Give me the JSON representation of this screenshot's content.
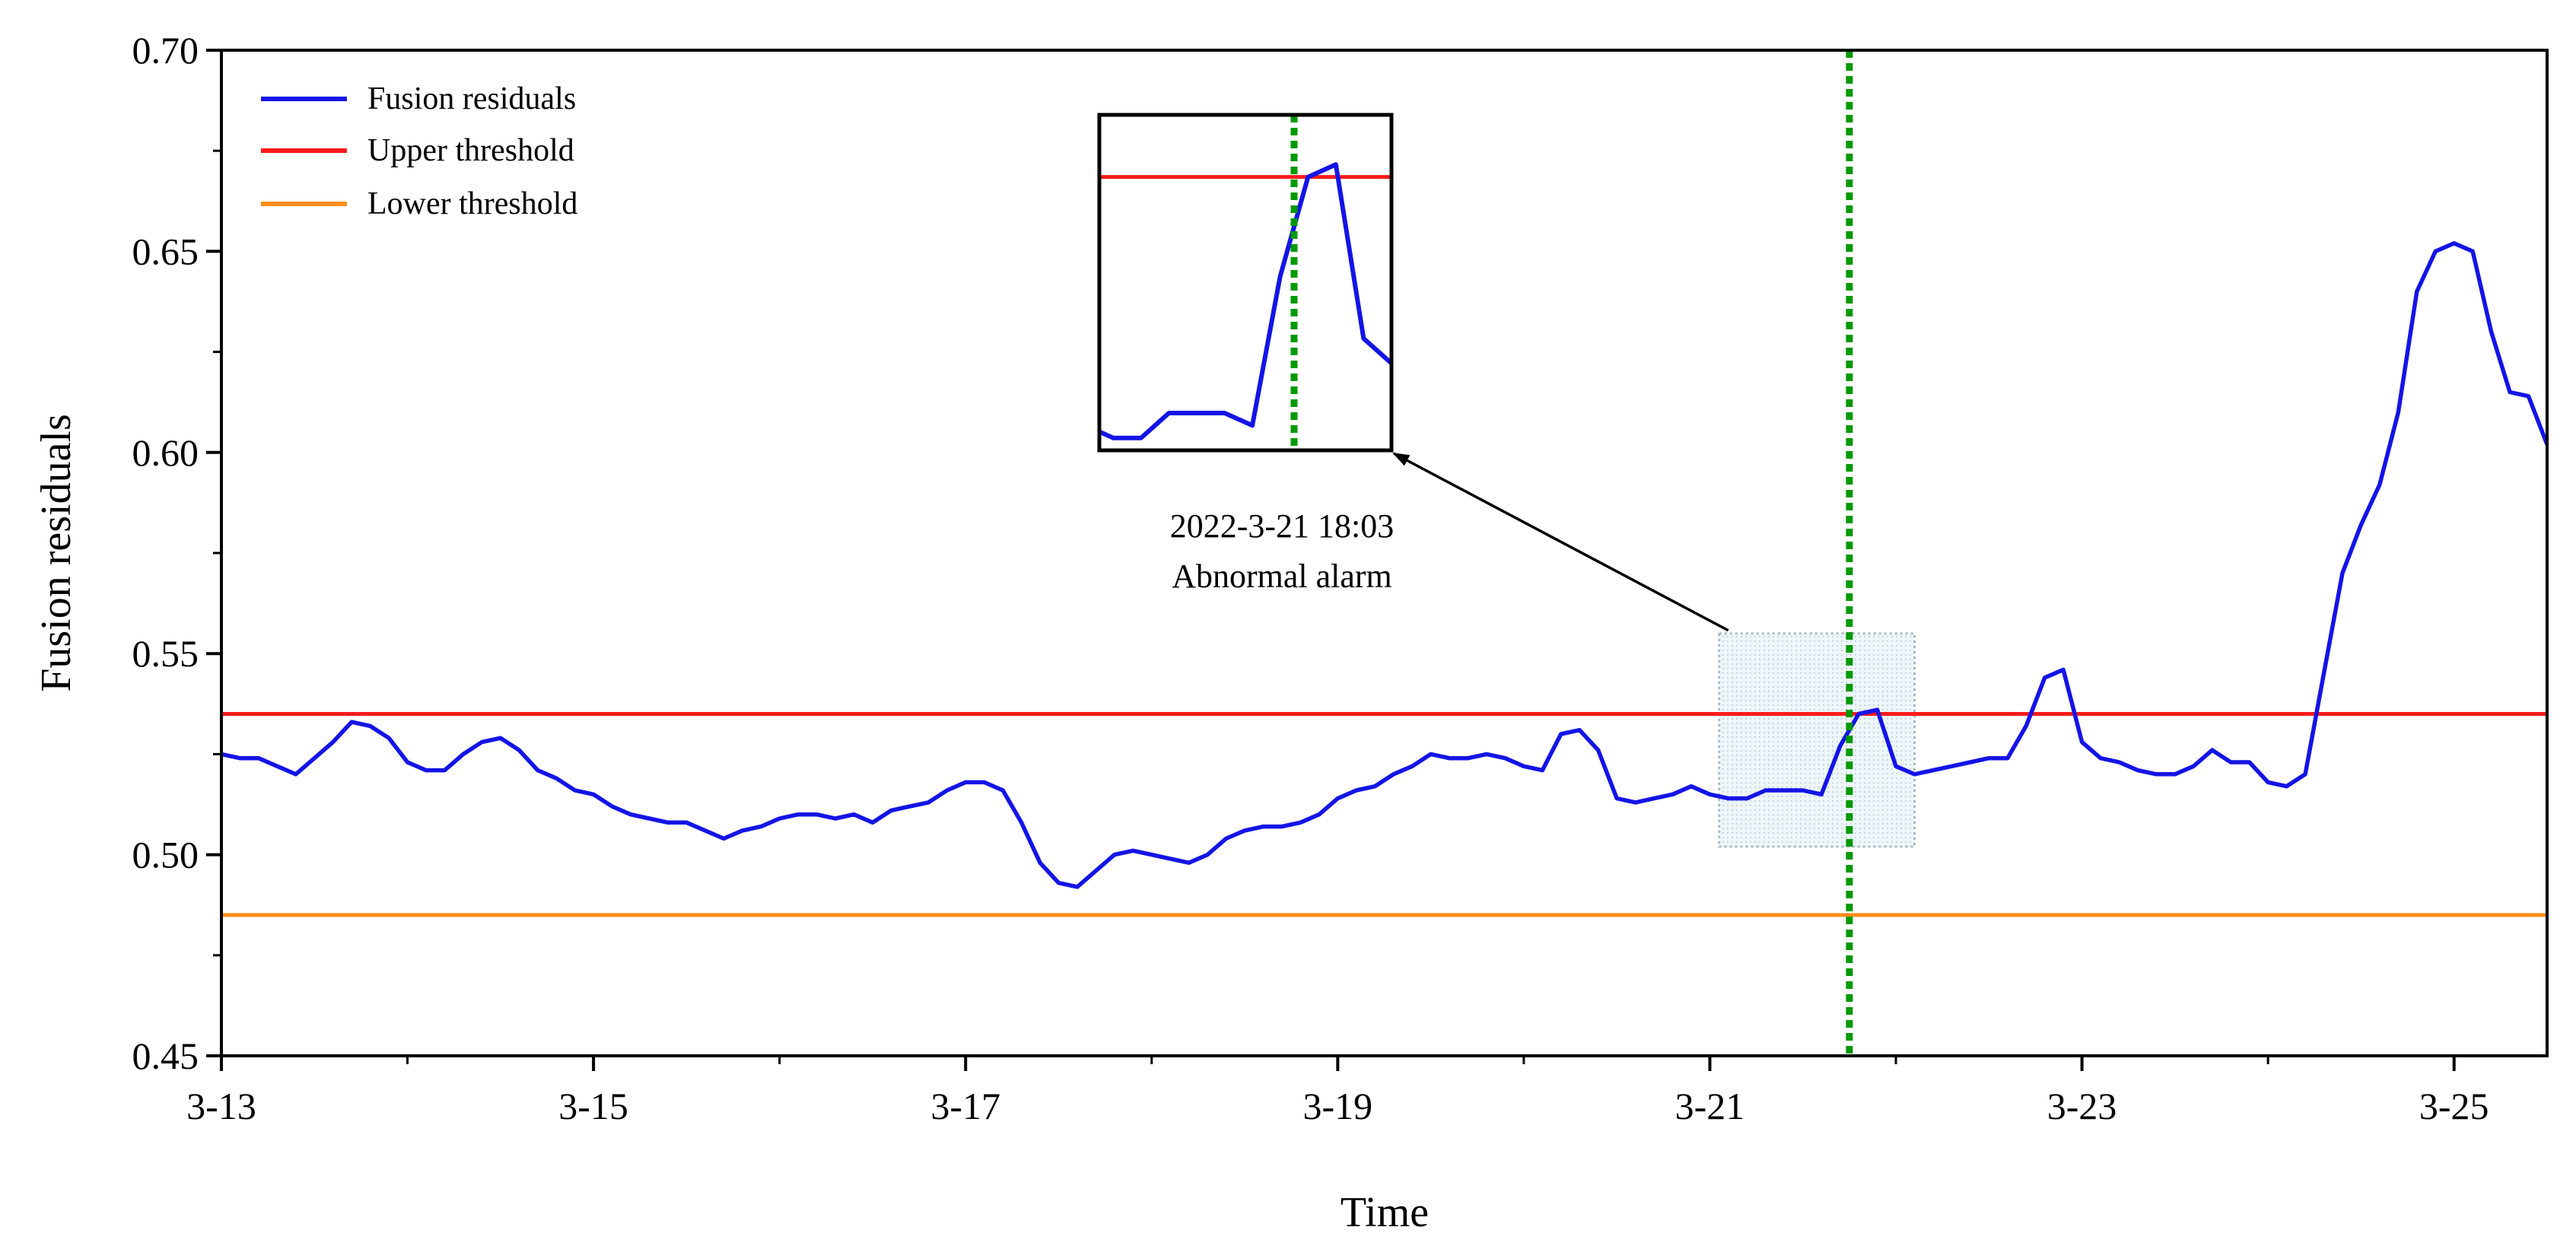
{
  "chart_data": {
    "type": "line",
    "title": "",
    "xlabel": "Time",
    "ylabel": "Fusion  residuals",
    "xlim": [
      0,
      12.5
    ],
    "ylim": [
      0.45,
      0.7
    ],
    "x_unit": "days since 3-13",
    "x_ticks": [
      {
        "x": 0,
        "label": "3-13"
      },
      {
        "x": 2,
        "label": "3-15"
      },
      {
        "x": 4,
        "label": "3-17"
      },
      {
        "x": 6,
        "label": "3-19"
      },
      {
        "x": 8,
        "label": "3-21"
      },
      {
        "x": 10,
        "label": "3-23"
      },
      {
        "x": 12,
        "label": "3-25"
      }
    ],
    "y_ticks": [
      {
        "y": 0.45,
        "label": "0.45"
      },
      {
        "y": 0.5,
        "label": "0.50"
      },
      {
        "y": 0.55,
        "label": "0.55"
      },
      {
        "y": 0.6,
        "label": "0.60"
      },
      {
        "y": 0.65,
        "label": "0.65"
      },
      {
        "y": 0.7,
        "label": "0.70"
      }
    ],
    "legend": {
      "placement": "top-left",
      "entries": [
        {
          "label": "Fusion residuals",
          "color": "#1414e6"
        },
        {
          "label": "Upper threshold",
          "color": "#ff1a1a"
        },
        {
          "label": "Lower threshold",
          "color": "#ff8c1a"
        }
      ]
    },
    "series": [
      {
        "name": "Fusion residuals",
        "color": "#1414e6",
        "x": [
          0,
          0.1,
          0.2,
          0.3,
          0.4,
          0.5,
          0.6,
          0.7,
          0.8,
          0.9,
          1.0,
          1.1,
          1.2,
          1.3,
          1.4,
          1.5,
          1.6,
          1.7,
          1.8,
          1.9,
          2.0,
          2.1,
          2.2,
          2.3,
          2.4,
          2.5,
          2.6,
          2.7,
          2.8,
          2.9,
          3.0,
          3.1,
          3.2,
          3.3,
          3.4,
          3.5,
          3.6,
          3.7,
          3.8,
          3.9,
          4.0,
          4.1,
          4.2,
          4.3,
          4.4,
          4.5,
          4.6,
          4.7,
          4.8,
          4.9,
          5.0,
          5.1,
          5.2,
          5.3,
          5.4,
          5.5,
          5.6,
          5.7,
          5.8,
          5.9,
          6.0,
          6.1,
          6.2,
          6.3,
          6.4,
          6.5,
          6.6,
          6.7,
          6.8,
          6.9,
          7.0,
          7.1,
          7.2,
          7.3,
          7.4,
          7.5,
          7.6,
          7.7,
          7.8,
          7.9,
          8.0,
          8.1,
          8.2,
          8.3,
          8.4,
          8.5,
          8.6,
          8.7,
          8.8,
          8.9,
          9.0,
          9.1,
          9.2,
          9.3,
          9.4,
          9.5,
          9.6,
          9.7,
          9.8,
          9.9,
          10.0,
          10.1,
          10.2,
          10.3,
          10.4,
          10.5,
          10.6,
          10.7,
          10.8,
          10.9,
          11.0,
          11.1,
          11.2,
          11.3,
          11.4,
          11.5,
          11.6,
          11.7,
          11.8,
          11.9,
          12.0,
          12.1,
          12.2,
          12.3,
          12.4,
          12.5
        ],
        "y": [
          0.525,
          0.524,
          0.524,
          0.522,
          0.52,
          0.524,
          0.528,
          0.533,
          0.532,
          0.529,
          0.523,
          0.521,
          0.521,
          0.525,
          0.528,
          0.529,
          0.526,
          0.521,
          0.519,
          0.516,
          0.515,
          0.512,
          0.51,
          0.509,
          0.508,
          0.508,
          0.506,
          0.504,
          0.506,
          0.507,
          0.509,
          0.51,
          0.51,
          0.509,
          0.51,
          0.508,
          0.511,
          0.512,
          0.513,
          0.516,
          0.518,
          0.518,
          0.516,
          0.508,
          0.498,
          0.493,
          0.492,
          0.496,
          0.5,
          0.501,
          0.5,
          0.499,
          0.498,
          0.5,
          0.504,
          0.506,
          0.507,
          0.507,
          0.508,
          0.51,
          0.514,
          0.516,
          0.517,
          0.52,
          0.522,
          0.525,
          0.524,
          0.524,
          0.525,
          0.524,
          0.522,
          0.521,
          0.53,
          0.531,
          0.526,
          0.514,
          0.513,
          0.514,
          0.515,
          0.517,
          0.515,
          0.514,
          0.514,
          0.516,
          0.516,
          0.516,
          0.515,
          0.527,
          0.535,
          0.536,
          0.522,
          0.52,
          0.521,
          0.522,
          0.523,
          0.524,
          0.524,
          0.532,
          0.544,
          0.546,
          0.528,
          0.524,
          0.523,
          0.521,
          0.52,
          0.52,
          0.522,
          0.526,
          0.523,
          0.523,
          0.518,
          0.517,
          0.52,
          0.545,
          0.57,
          0.582,
          0.592,
          0.61,
          0.64,
          0.65,
          0.652,
          0.65,
          0.63,
          0.615,
          0.614,
          0.602
        ]
      }
    ],
    "reference_lines": [
      {
        "name": "Upper threshold",
        "orientation": "horizontal",
        "y": 0.535,
        "color": "#ff1a1a"
      },
      {
        "name": "Lower threshold",
        "orientation": "horizontal",
        "y": 0.485,
        "color": "#ff8c1a"
      },
      {
        "name": "Alarm time",
        "orientation": "vertical",
        "x": 8.75,
        "color": "#009900",
        "style": "dotted"
      }
    ],
    "highlight_region": {
      "x": [
        8.05,
        9.1
      ],
      "y": [
        0.502,
        0.555
      ]
    },
    "annotation": {
      "line1": "2022-3-21 18:03",
      "line2": "Abnormal alarm"
    },
    "inset": {
      "description": "zoom of highlighted region",
      "xlim": [
        8.05,
        9.1
      ],
      "ylim": [
        0.513,
        0.54
      ]
    }
  }
}
